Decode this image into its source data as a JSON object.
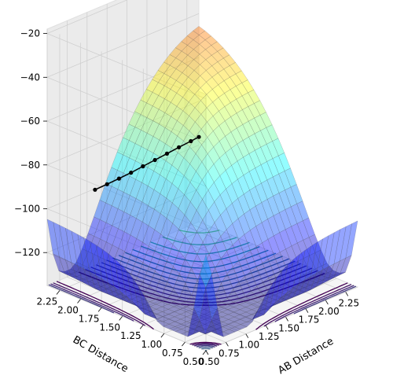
{
  "chart_data": {
    "type": "surface3d",
    "title": "",
    "xlabel": "AB Distance",
    "ylabel": "BC Distance",
    "zlabel": "",
    "x_ticks": [
      "0.50",
      "0.75",
      "1.00",
      "1.25",
      "1.50",
      "1.75",
      "2.00",
      "2.25"
    ],
    "y_ticks": [
      "0.50",
      "0.75",
      "1.00",
      "1.25",
      "1.50",
      "1.75",
      "2.00",
      "2.25"
    ],
    "z_ticks": [
      "−20",
      "−40",
      "−60",
      "−80",
      "−100",
      "−120"
    ],
    "x_range": [
      0.5,
      2.4
    ],
    "y_range": [
      0.5,
      2.4
    ],
    "z_range": [
      -135,
      -18
    ],
    "z_clip_max": -20,
    "z_contour_offset": -135,
    "surface_colormap": "jet",
    "contour_colormap": "viridis",
    "grid": true,
    "trajectory": {
      "name": "",
      "color": "#000000",
      "points": [
        {
          "ab": 1.1,
          "bc": 2.4,
          "e": -100.5
        },
        {
          "ab": 1.25,
          "bc": 2.4,
          "e": -100.3
        },
        {
          "ab": 1.4,
          "bc": 2.4,
          "e": -100.0
        },
        {
          "ab": 1.55,
          "bc": 2.4,
          "e": -99.6
        },
        {
          "ab": 1.7,
          "bc": 2.4,
          "e": -99.0
        },
        {
          "ab": 1.85,
          "bc": 2.4,
          "e": -98.4
        },
        {
          "ab": 2.0,
          "bc": 2.4,
          "e": -97.8
        },
        {
          "ab": 2.15,
          "bc": 2.4,
          "e": -97.2
        },
        {
          "ab": 2.3,
          "bc": 2.4,
          "e": -96.7
        },
        {
          "ab": 2.4,
          "bc": 2.4,
          "e": -96.3
        }
      ]
    }
  }
}
